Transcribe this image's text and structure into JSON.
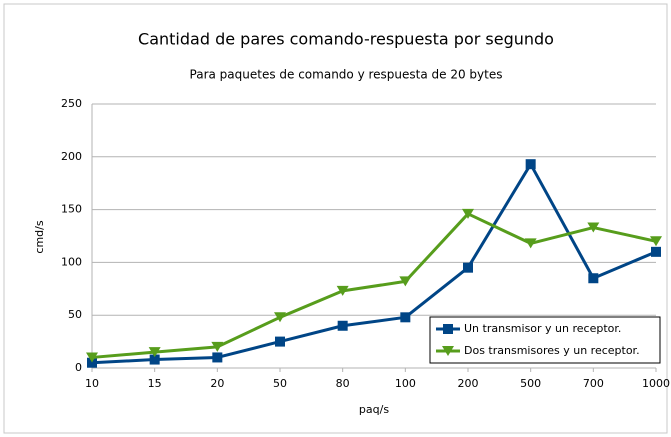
{
  "chart_data": {
    "type": "line",
    "title": "Cantidad de pares comando-respuesta por segundo",
    "subtitle": "Para paquetes de comando y respuesta de 20 bytes",
    "x_label": "paq/s",
    "y_label": "cmd/s",
    "categories": [
      "10",
      "15",
      "20",
      "50",
      "80",
      "100",
      "200",
      "500",
      "700",
      "1000"
    ],
    "series": [
      {
        "name": "Un transmisor y un receptor.",
        "color": "#004586",
        "marker": "square",
        "values": [
          5,
          8,
          10,
          25,
          40,
          48,
          95,
          193,
          85,
          110
        ]
      },
      {
        "name": "Dos transmisores y un receptor.",
        "color": "#579d1c",
        "marker": "triangle-down",
        "values": [
          10,
          15,
          20,
          48,
          73,
          82,
          146,
          118,
          133,
          120
        ]
      }
    ],
    "ylim": [
      0,
      250
    ],
    "yticks": [
      0,
      50,
      100,
      150,
      200,
      250
    ],
    "grid": true,
    "legend": "lower right"
  }
}
